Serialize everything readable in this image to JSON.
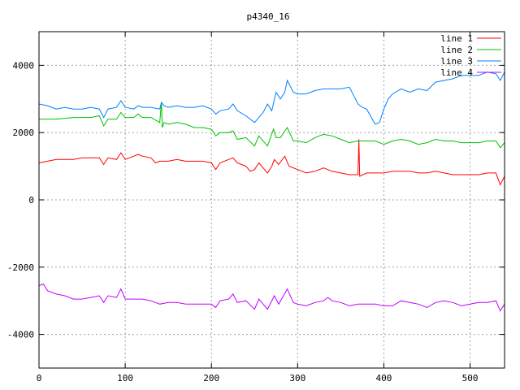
{
  "chart_data": {
    "type": "line",
    "title": "p4340_16",
    "xlabel": "",
    "ylabel": "",
    "xlim": [
      0,
      540
    ],
    "ylim": [
      -5000,
      5000
    ],
    "xticks": [
      0,
      100,
      200,
      300,
      400,
      500
    ],
    "yticks": [
      -4000,
      -2000,
      0,
      2000,
      4000
    ],
    "grid": true,
    "legend_position": "top-right",
    "series": [
      {
        "name": "line 1",
        "color": "#ff0000",
        "x": [
          0,
          10,
          20,
          30,
          40,
          50,
          60,
          70,
          75,
          80,
          90,
          95,
          100,
          110,
          115,
          120,
          130,
          135,
          140,
          150,
          160,
          170,
          180,
          190,
          200,
          205,
          210,
          220,
          225,
          230,
          240,
          245,
          250,
          255,
          265,
          270,
          273,
          278,
          285,
          290,
          300,
          310,
          320,
          330,
          340,
          350,
          360,
          370,
          371,
          372,
          380,
          390,
          400,
          410,
          420,
          430,
          440,
          450,
          460,
          470,
          480,
          490,
          500,
          510,
          520,
          530,
          535,
          540
        ],
        "y": [
          1100,
          1150,
          1200,
          1200,
          1200,
          1250,
          1250,
          1250,
          1050,
          1250,
          1200,
          1400,
          1200,
          1300,
          1350,
          1300,
          1250,
          1100,
          1150,
          1150,
          1200,
          1150,
          1150,
          1150,
          1100,
          900,
          1100,
          1200,
          1250,
          1100,
          1000,
          850,
          900,
          1100,
          800,
          1000,
          1200,
          1050,
          1300,
          1000,
          900,
          800,
          850,
          950,
          850,
          800,
          750,
          750,
          1800,
          700,
          800,
          800,
          800,
          850,
          850,
          850,
          800,
          800,
          850,
          800,
          750,
          750,
          750,
          750,
          800,
          800,
          450,
          700
        ]
      },
      {
        "name": "line 2",
        "color": "#00c000",
        "x": [
          0,
          20,
          40,
          60,
          70,
          75,
          80,
          90,
          95,
          100,
          110,
          115,
          120,
          130,
          140,
          142,
          143,
          145,
          150,
          160,
          170,
          180,
          190,
          200,
          205,
          210,
          220,
          225,
          230,
          240,
          250,
          255,
          265,
          272,
          275,
          280,
          288,
          295,
          300,
          310,
          320,
          330,
          340,
          350,
          360,
          370,
          380,
          390,
          400,
          410,
          420,
          430,
          440,
          450,
          460,
          470,
          480,
          490,
          500,
          510,
          520,
          530,
          535,
          540
        ],
        "y": [
          2400,
          2400,
          2450,
          2450,
          2500,
          2200,
          2400,
          2400,
          2600,
          2450,
          2450,
          2550,
          2450,
          2450,
          2300,
          2900,
          2150,
          2300,
          2250,
          2300,
          2250,
          2150,
          2150,
          2100,
          1900,
          2000,
          2000,
          2050,
          1800,
          1850,
          1600,
          1900,
          1600,
          2100,
          1850,
          1850,
          2150,
          1750,
          1750,
          1700,
          1850,
          1950,
          1900,
          1800,
          1700,
          1750,
          1750,
          1750,
          1650,
          1750,
          1800,
          1750,
          1650,
          1700,
          1800,
          1750,
          1750,
          1700,
          1700,
          1700,
          1750,
          1750,
          1550,
          1700
        ]
      },
      {
        "name": "line 3",
        "color": "#0080ff",
        "x": [
          0,
          10,
          20,
          30,
          40,
          50,
          60,
          70,
          75,
          80,
          90,
          95,
          100,
          110,
          115,
          120,
          130,
          140,
          142,
          145,
          150,
          160,
          170,
          180,
          190,
          200,
          205,
          210,
          220,
          225,
          230,
          240,
          250,
          260,
          265,
          270,
          275,
          280,
          285,
          288,
          295,
          300,
          310,
          320,
          330,
          340,
          350,
          360,
          370,
          375,
          380,
          390,
          395,
          400,
          405,
          410,
          420,
          430,
          440,
          450,
          460,
          470,
          480,
          490,
          500,
          510,
          520,
          530,
          535,
          540
        ],
        "y": [
          2850,
          2800,
          2700,
          2750,
          2700,
          2700,
          2750,
          2700,
          2450,
          2700,
          2750,
          2950,
          2750,
          2700,
          2800,
          2750,
          2750,
          2700,
          2900,
          2800,
          2750,
          2800,
          2750,
          2750,
          2800,
          2700,
          2550,
          2650,
          2700,
          2850,
          2650,
          2500,
          2300,
          2600,
          2850,
          2650,
          3200,
          3000,
          3200,
          3550,
          3200,
          3150,
          3150,
          3250,
          3300,
          3300,
          3300,
          3350,
          2850,
          2750,
          2700,
          2250,
          2300,
          2700,
          3000,
          3150,
          3300,
          3200,
          3300,
          3250,
          3500,
          3550,
          3600,
          3700,
          3700,
          3700,
          3800,
          3750,
          3550,
          3800
        ]
      },
      {
        "name": "line 4",
        "color": "#c000ff",
        "x": [
          0,
          5,
          10,
          20,
          30,
          40,
          50,
          60,
          70,
          75,
          80,
          90,
          95,
          100,
          110,
          120,
          130,
          140,
          150,
          160,
          170,
          180,
          190,
          200,
          205,
          210,
          220,
          225,
          230,
          240,
          250,
          255,
          265,
          273,
          278,
          288,
          295,
          300,
          310,
          320,
          330,
          335,
          340,
          350,
          360,
          370,
          380,
          390,
          400,
          410,
          420,
          430,
          440,
          450,
          460,
          470,
          480,
          490,
          500,
          510,
          520,
          530,
          535,
          540
        ],
        "y": [
          -2550,
          -2500,
          -2700,
          -2800,
          -2850,
          -2950,
          -2950,
          -2900,
          -2850,
          -3050,
          -2850,
          -2900,
          -2650,
          -2950,
          -2950,
          -2950,
          -3000,
          -3100,
          -3050,
          -3050,
          -3100,
          -3100,
          -3100,
          -3100,
          -3200,
          -3000,
          -2950,
          -2800,
          -3050,
          -3000,
          -3250,
          -2950,
          -3250,
          -2850,
          -3100,
          -2650,
          -3050,
          -3100,
          -3150,
          -3050,
          -3000,
          -2900,
          -3000,
          -3050,
          -3150,
          -3100,
          -3100,
          -3100,
          -3150,
          -3150,
          -3000,
          -3050,
          -3100,
          -3200,
          -3050,
          -3000,
          -3050,
          -3150,
          -3100,
          -3050,
          -3050,
          -3000,
          -3300,
          -3100
        ]
      }
    ]
  }
}
